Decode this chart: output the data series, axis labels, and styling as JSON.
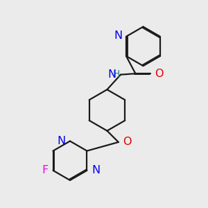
{
  "bg_color": "#ebebeb",
  "bond_color": "#1a1a1a",
  "N_color": "#0000ee",
  "O_color": "#dd0000",
  "F_color": "#ee00ee",
  "NH_color": "#338888",
  "lw": 1.6,
  "dbo": 0.055,
  "fs": 11.5,
  "xlim": [
    0,
    10
  ],
  "ylim": [
    0,
    10
  ]
}
